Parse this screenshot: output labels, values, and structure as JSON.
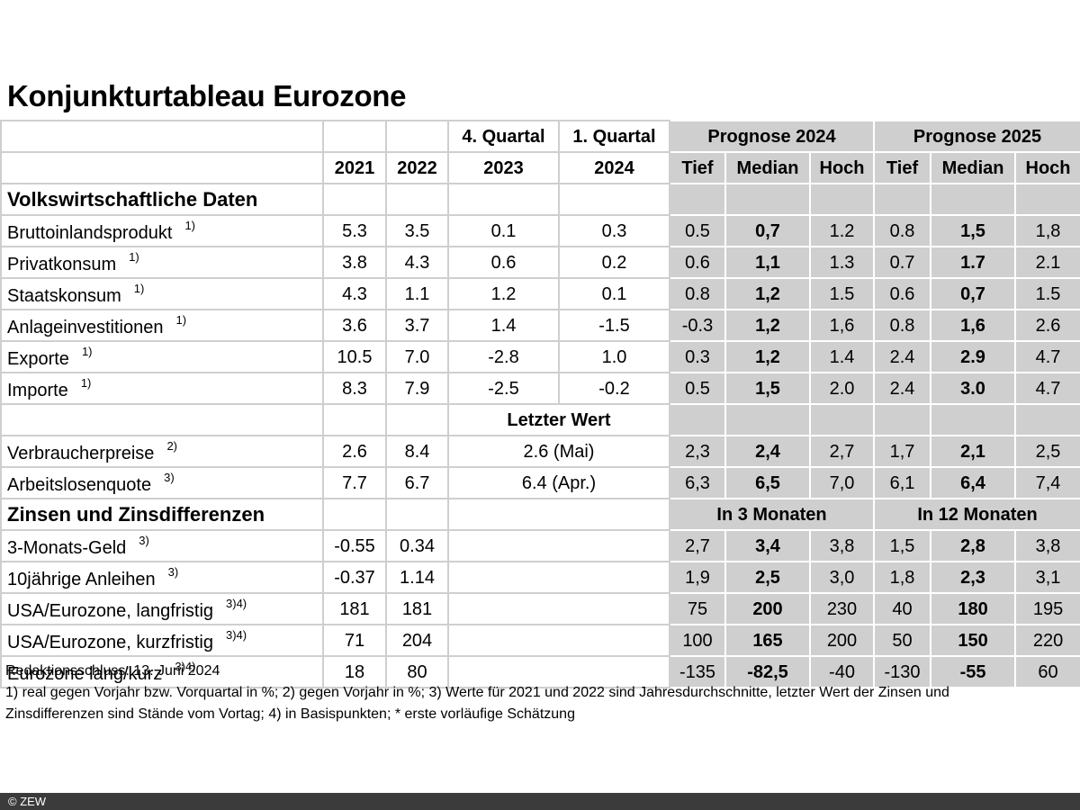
{
  "title": "Konjunkturtableau Eurozone",
  "header": {
    "q4": "4. Quartal",
    "q1": "1. Quartal",
    "prog2024": "Prognose 2024",
    "prog2025": "Prognose 2025",
    "y2021": "2021",
    "y2022": "2022",
    "y2023": "2023",
    "y2024": "2024",
    "tief": "Tief",
    "median": "Median",
    "hoch": "Hoch"
  },
  "sections": {
    "vwd": "Volkswirtschaftliche Daten",
    "zinsen": "Zinsen und Zinsdifferenzen",
    "letzter_wert": "Letzter Wert",
    "in3": "In 3 Monaten",
    "in12": "In 12 Monaten"
  },
  "rows_a": [
    {
      "label": "Bruttoinlandsprodukt",
      "note": "1)",
      "v": [
        "5.3",
        "3.5",
        "0.1",
        "0.3",
        "0.5",
        "0,7",
        "1.2",
        "0.8",
        "1,5",
        "1,8"
      ]
    },
    {
      "label": "Privatkonsum",
      "note": "1)",
      "v": [
        "3.8",
        "4.3",
        "0.6",
        "0.2",
        "0.6",
        "1,1",
        "1.3",
        "0.7",
        "1.7",
        "2.1"
      ]
    },
    {
      "label": "Staatskonsum",
      "note": "1)",
      "v": [
        "4.3",
        "1.1",
        "1.2",
        "0.1",
        "0.8",
        "1,2",
        "1.5",
        "0.6",
        "0,7",
        "1.5"
      ]
    },
    {
      "label": "Anlageinvestitionen",
      "note": "1)",
      "v": [
        "3.6",
        "3.7",
        "1.4",
        "-1.5",
        "-0.3",
        "1,2",
        "1,6",
        "0.8",
        "1,6",
        "2.6"
      ]
    },
    {
      "label": "Exporte",
      "note": "1)",
      "v": [
        "10.5",
        "7.0",
        "-2.8",
        "1.0",
        "0.3",
        "1,2",
        "1.4",
        "2.4",
        "2.9",
        "4.7"
      ]
    },
    {
      "label": "Importe",
      "note": "1)",
      "v": [
        "8.3",
        "7.9",
        "-2.5",
        "-0.2",
        "0.5",
        "1,5",
        "2.0",
        "2.4",
        "3.0",
        "4.7"
      ]
    }
  ],
  "rows_b": [
    {
      "label": "Verbraucherpreise",
      "note": "2)",
      "v": [
        "2.6",
        "8.4",
        "2.6 (Mai)",
        "2,3",
        "2,4",
        "2,7",
        "1,7",
        "2,1",
        "2,5"
      ]
    },
    {
      "label": "Arbeitslosenquote",
      "note": "3)",
      "v": [
        "7.7",
        "6.7",
        "6.4 (Apr.)",
        "6,3",
        "6,5",
        "7,0",
        "6,1",
        "6,4",
        "7,4"
      ]
    }
  ],
  "rows_c": [
    {
      "label": "3-Monats-Geld",
      "note": "3)",
      "v": [
        "-0.55",
        "0.34",
        "2,7",
        "3,4",
        "3,8",
        "1,5",
        "2,8",
        "3,8"
      ]
    },
    {
      "label": "10jährige Anleihen",
      "note": "3)",
      "v": [
        "-0.37",
        "1.14",
        "1,9",
        "2,5",
        "3,0",
        "1,8",
        "2,3",
        "3,1"
      ]
    },
    {
      "label": "USA/Eurozone, langfristig",
      "note": "3)4)",
      "v": [
        "181",
        "181",
        "75",
        "200",
        "230",
        "40",
        "180",
        "195"
      ]
    },
    {
      "label": "USA/Eurozone, kurzfristig",
      "note": "3)4)",
      "v": [
        "71",
        "204",
        "100",
        "165",
        "200",
        "50",
        "150",
        "220"
      ]
    },
    {
      "label": "Eurozone lang/kurz",
      "note": "3)4)",
      "v": [
        "18",
        "80",
        "-135",
        "-82,5",
        "-40",
        "-130",
        "-55",
        "60"
      ]
    }
  ],
  "notes": {
    "deadline": "Redaktionsschluss: 13. Juni 2024",
    "line1": "1) real gegen Vorjahr bzw. Vorquartal in %; 2) gegen Vorjahr in %; 3) Werte für 2021  und 2022 sind Jahresdurchschnitte, letzter Wert der Zinsen und",
    "line2": "Zinsdifferenzen sind Stände vom Vortag; 4) in Basispunkten; * erste vorläufige Schätzung"
  },
  "footer": "© ZEW",
  "colors": {
    "shade": "#cfcfcf",
    "footer_bg": "#3b3b3b"
  }
}
